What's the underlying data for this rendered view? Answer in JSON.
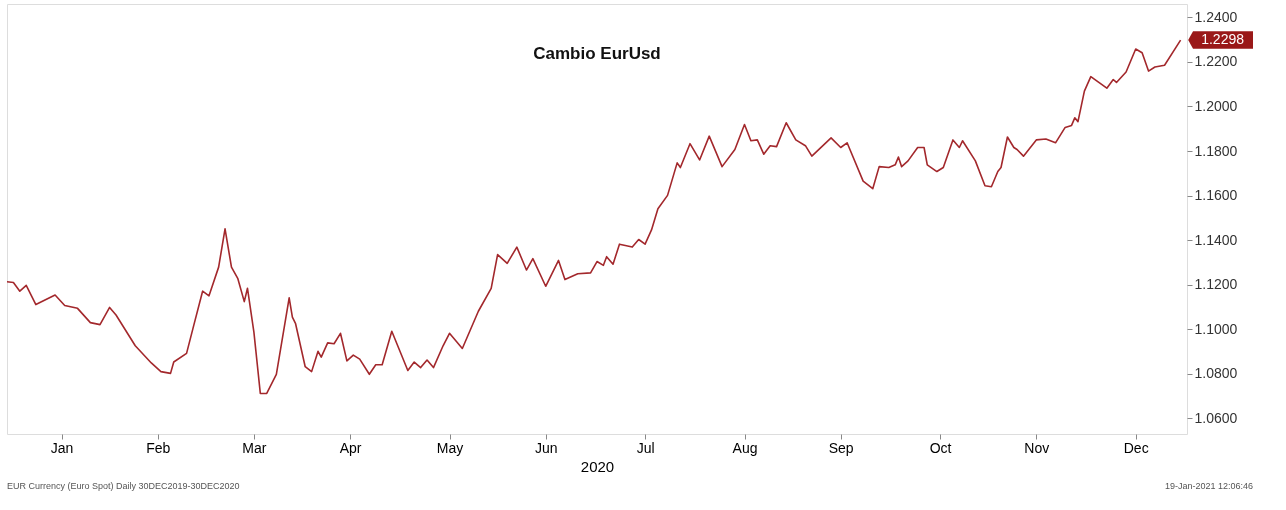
{
  "chart_data": {
    "type": "line",
    "title": "Cambio EurUsd",
    "xlabel": "2020",
    "x": [
      "2019-12-30",
      "2020-01-01",
      "2020-01-03",
      "2020-01-05",
      "2020-01-08",
      "2020-01-14",
      "2020-01-17",
      "2020-01-21",
      "2020-01-25",
      "2020-01-28",
      "2020-01-31",
      "2020-02-02",
      "2020-02-08",
      "2020-02-13",
      "2020-02-16",
      "2020-02-19",
      "2020-02-20",
      "2020-02-24",
      "2020-02-26",
      "2020-02-29",
      "2020-03-02",
      "2020-03-05",
      "2020-03-07",
      "2020-03-09",
      "2020-03-11",
      "2020-03-13",
      "2020-03-14",
      "2020-03-16",
      "2020-03-18",
      "2020-03-20",
      "2020-03-23",
      "2020-03-27",
      "2020-03-28",
      "2020-03-29",
      "2020-04-01",
      "2020-04-03",
      "2020-04-05",
      "2020-04-06",
      "2020-04-08",
      "2020-04-10",
      "2020-04-12",
      "2020-04-14",
      "2020-04-16",
      "2020-04-18",
      "2020-04-21",
      "2020-04-23",
      "2020-04-25",
      "2020-04-28",
      "2020-05-03",
      "2020-05-05",
      "2020-05-07",
      "2020-05-09",
      "2020-05-11",
      "2020-05-14",
      "2020-05-16",
      "2020-05-20",
      "2020-05-25",
      "2020-05-29",
      "2020-05-31",
      "2020-06-03",
      "2020-06-06",
      "2020-06-09",
      "2020-06-11",
      "2020-06-15",
      "2020-06-19",
      "2020-06-21",
      "2020-06-25",
      "2020-06-29",
      "2020-07-01",
      "2020-07-03",
      "2020-07-04",
      "2020-07-06",
      "2020-07-08",
      "2020-07-12",
      "2020-07-14",
      "2020-07-16",
      "2020-07-18",
      "2020-07-20",
      "2020-07-23",
      "2020-07-26",
      "2020-07-27",
      "2020-07-30",
      "2020-08-02",
      "2020-08-05",
      "2020-08-09",
      "2020-08-13",
      "2020-08-16",
      "2020-08-18",
      "2020-08-20",
      "2020-08-22",
      "2020-08-24",
      "2020-08-26",
      "2020-08-29",
      "2020-09-01",
      "2020-09-04",
      "2020-09-06",
      "2020-09-12",
      "2020-09-15",
      "2020-09-17",
      "2020-09-22",
      "2020-09-25",
      "2020-09-27",
      "2020-09-30",
      "2020-10-02",
      "2020-10-03",
      "2020-10-04",
      "2020-10-06",
      "2020-10-09",
      "2020-10-11",
      "2020-10-12",
      "2020-10-15",
      "2020-10-17",
      "2020-10-20",
      "2020-10-22",
      "2020-10-23",
      "2020-10-27",
      "2020-10-30",
      "2020-11-01",
      "2020-11-03",
      "2020-11-04",
      "2020-11-06",
      "2020-11-08",
      "2020-11-09",
      "2020-11-11",
      "2020-11-15",
      "2020-11-18",
      "2020-11-21",
      "2020-11-24",
      "2020-11-26",
      "2020-11-27",
      "2020-11-28",
      "2020-11-30",
      "2020-12-02",
      "2020-12-07",
      "2020-12-09",
      "2020-12-10",
      "2020-12-13",
      "2020-12-16",
      "2020-12-18",
      "2020-12-20",
      "2020-12-22",
      "2020-12-25",
      "2020-12-30"
    ],
    "series": [
      {
        "color": "#a3282c",
        "values": [
          1.1213,
          1.121,
          1.1171,
          1.1197,
          1.1111,
          1.1154,
          1.1107,
          1.1094,
          1.103,
          1.1021,
          1.1098,
          1.1064,
          1.0926,
          1.0849,
          1.081,
          1.0802,
          1.0853,
          1.0892,
          1.1004,
          1.1171,
          1.115,
          1.1279,
          1.1451,
          1.1279,
          1.1227,
          1.1124,
          1.1184,
          1.0987,
          1.0712,
          1.0712,
          1.0798,
          1.1141,
          1.1055,
          1.1025,
          1.0832,
          1.081,
          1.0901,
          1.0875,
          1.0939,
          1.0935,
          1.0982,
          1.0858,
          1.0884,
          1.0866,
          1.0798,
          1.0841,
          1.0841,
          1.0991,
          1.0815,
          1.0853,
          1.0828,
          1.0862,
          1.0828,
          1.0926,
          1.0982,
          1.0914,
          1.1081,
          1.1184,
          1.1335,
          1.1296,
          1.1369,
          1.1266,
          1.1317,
          1.1193,
          1.1309,
          1.1223,
          1.1249,
          1.1253,
          1.1304,
          1.1287,
          1.1326,
          1.1292,
          1.1382,
          1.1369,
          1.1403,
          1.1382,
          1.1446,
          1.1541,
          1.1601,
          1.1747,
          1.1726,
          1.1833,
          1.176,
          1.1867,
          1.173,
          1.1807,
          1.1919,
          1.1846,
          1.185,
          1.1786,
          1.1824,
          1.182,
          1.1927,
          1.185,
          1.1824,
          1.1777,
          1.1859,
          1.1816,
          1.1837,
          1.1665,
          1.1631,
          1.173,
          1.1726,
          1.1738,
          1.1773,
          1.173,
          1.1756,
          1.1816,
          1.1816,
          1.1738,
          1.1708,
          1.1726,
          1.185,
          1.1816,
          1.1846,
          1.1756,
          1.1644,
          1.164,
          1.1708,
          1.1726,
          1.1863,
          1.1816,
          1.1807,
          1.1777,
          1.185,
          1.1854,
          1.1837,
          1.1906,
          1.1915,
          1.1949,
          1.1932,
          1.2069,
          1.2134,
          1.2082,
          1.2121,
          1.2108,
          1.2155,
          1.2258,
          1.2241,
          1.2159,
          1.2177,
          1.2185,
          1.2298
        ]
      }
    ],
    "xlim": [
      "2019-12-30",
      "2021-01-01"
    ],
    "xticks": [
      {
        "value": "2020-01-16",
        "label": "Jan"
      },
      {
        "value": "2020-02-15",
        "label": "Feb"
      },
      {
        "value": "2020-03-16",
        "label": "Mar"
      },
      {
        "value": "2020-04-15",
        "label": "Apr"
      },
      {
        "value": "2020-05-16",
        "label": "May"
      },
      {
        "value": "2020-06-15",
        "label": "Jun"
      },
      {
        "value": "2020-07-16",
        "label": "Jul"
      },
      {
        "value": "2020-08-16",
        "label": "Aug"
      },
      {
        "value": "2020-09-15",
        "label": "Sep"
      },
      {
        "value": "2020-10-16",
        "label": "Oct"
      },
      {
        "value": "2020-11-15",
        "label": "Nov"
      },
      {
        "value": "2020-12-16",
        "label": "Dec"
      }
    ],
    "ylim": [
      1.053,
      1.246
    ],
    "yticks": [
      {
        "value": 1.06,
        "label": "1.0600"
      },
      {
        "value": 1.08,
        "label": "1.0800"
      },
      {
        "value": 1.1,
        "label": "1.1000"
      },
      {
        "value": 1.12,
        "label": "1.1200"
      },
      {
        "value": 1.14,
        "label": "1.1400"
      },
      {
        "value": 1.16,
        "label": "1.1600"
      },
      {
        "value": 1.18,
        "label": "1.1800"
      },
      {
        "value": 1.2,
        "label": "1.2000"
      },
      {
        "value": 1.22,
        "label": "1.2200"
      },
      {
        "value": 1.24,
        "label": "1.2400"
      }
    ],
    "grid": false,
    "annotations": [
      {
        "text": "1.2298",
        "x": "2020-12-30",
        "y": 1.2298
      },
      "EUR Currency (Euro Spot) Daily 30DEC2019-30DEC2020",
      "19-Jan-2021 12:06:46"
    ]
  }
}
